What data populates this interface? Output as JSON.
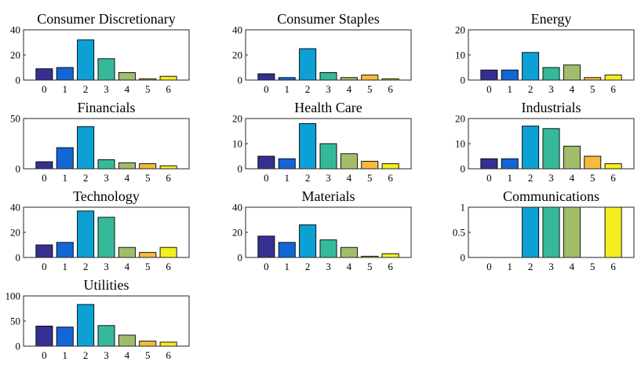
{
  "palette": [
    "#35308f",
    "#1266d6",
    "#0da0d4",
    "#36b99a",
    "#a2bd6a",
    "#f6ba3c",
    "#f4ee1f"
  ],
  "chart_data": [
    {
      "type": "bar",
      "title": "Consumer Discretionary",
      "categories": [
        "0",
        "1",
        "2",
        "3",
        "4",
        "5",
        "6"
      ],
      "values": [
        9,
        10,
        32,
        17,
        6,
        1,
        3
      ],
      "ylim": [
        0,
        40
      ],
      "yticks": [
        "0",
        "20",
        "40"
      ],
      "grid": false
    },
    {
      "type": "bar",
      "title": "Consumer Staples",
      "categories": [
        "0",
        "1",
        "2",
        "3",
        "4",
        "5",
        "6"
      ],
      "values": [
        5,
        2,
        25,
        6,
        2,
        4,
        1
      ],
      "ylim": [
        0,
        40
      ],
      "yticks": [
        "0",
        "20",
        "40"
      ],
      "grid": false
    },
    {
      "type": "bar",
      "title": "Energy",
      "categories": [
        "0",
        "1",
        "2",
        "3",
        "4",
        "5",
        "6"
      ],
      "values": [
        4,
        4,
        11,
        5,
        6,
        1,
        2
      ],
      "ylim": [
        0,
        20
      ],
      "yticks": [
        "0",
        "10",
        "20"
      ],
      "grid": false
    },
    {
      "type": "bar",
      "title": "Financials",
      "categories": [
        "0",
        "1",
        "2",
        "3",
        "4",
        "5",
        "6"
      ],
      "values": [
        7,
        21,
        42,
        9,
        6,
        5,
        3
      ],
      "ylim": [
        0,
        50
      ],
      "yticks": [
        "0",
        "50"
      ],
      "grid": false
    },
    {
      "type": "bar",
      "title": "Health Care",
      "categories": [
        "0",
        "1",
        "2",
        "3",
        "4",
        "5",
        "6"
      ],
      "values": [
        5,
        4,
        18,
        10,
        6,
        3,
        2
      ],
      "ylim": [
        0,
        20
      ],
      "yticks": [
        "0",
        "10",
        "20"
      ],
      "grid": false
    },
    {
      "type": "bar",
      "title": "Industrials",
      "categories": [
        "0",
        "1",
        "2",
        "3",
        "4",
        "5",
        "6"
      ],
      "values": [
        4,
        4,
        17,
        16,
        9,
        5,
        2
      ],
      "ylim": [
        0,
        20
      ],
      "yticks": [
        "0",
        "10",
        "20"
      ],
      "grid": false
    },
    {
      "type": "bar",
      "title": "Technology",
      "categories": [
        "0",
        "1",
        "2",
        "3",
        "4",
        "5",
        "6"
      ],
      "values": [
        10,
        12,
        37,
        32,
        8,
        4,
        8
      ],
      "ylim": [
        0,
        40
      ],
      "yticks": [
        "0",
        "20",
        "40"
      ],
      "grid": false
    },
    {
      "type": "bar",
      "title": "Materials",
      "categories": [
        "0",
        "1",
        "2",
        "3",
        "4",
        "5",
        "6"
      ],
      "values": [
        17,
        12,
        26,
        14,
        8,
        1,
        3
      ],
      "ylim": [
        0,
        40
      ],
      "yticks": [
        "0",
        "20",
        "40"
      ],
      "grid": false
    },
    {
      "type": "bar",
      "title": "Communications",
      "categories": [
        "0",
        "1",
        "2",
        "3",
        "4",
        "5",
        "6"
      ],
      "values": [
        0,
        0,
        1,
        1,
        1,
        0,
        1
      ],
      "ylim": [
        0,
        1
      ],
      "yticks": [
        "0",
        "0.5",
        "1"
      ],
      "grid": false
    },
    {
      "type": "bar",
      "title": "Utilities",
      "categories": [
        "0",
        "1",
        "2",
        "3",
        "4",
        "5",
        "6"
      ],
      "values": [
        40,
        38,
        83,
        41,
        22,
        10,
        8
      ],
      "ylim": [
        0,
        100
      ],
      "yticks": [
        "0",
        "50",
        "100"
      ],
      "grid": false
    }
  ]
}
